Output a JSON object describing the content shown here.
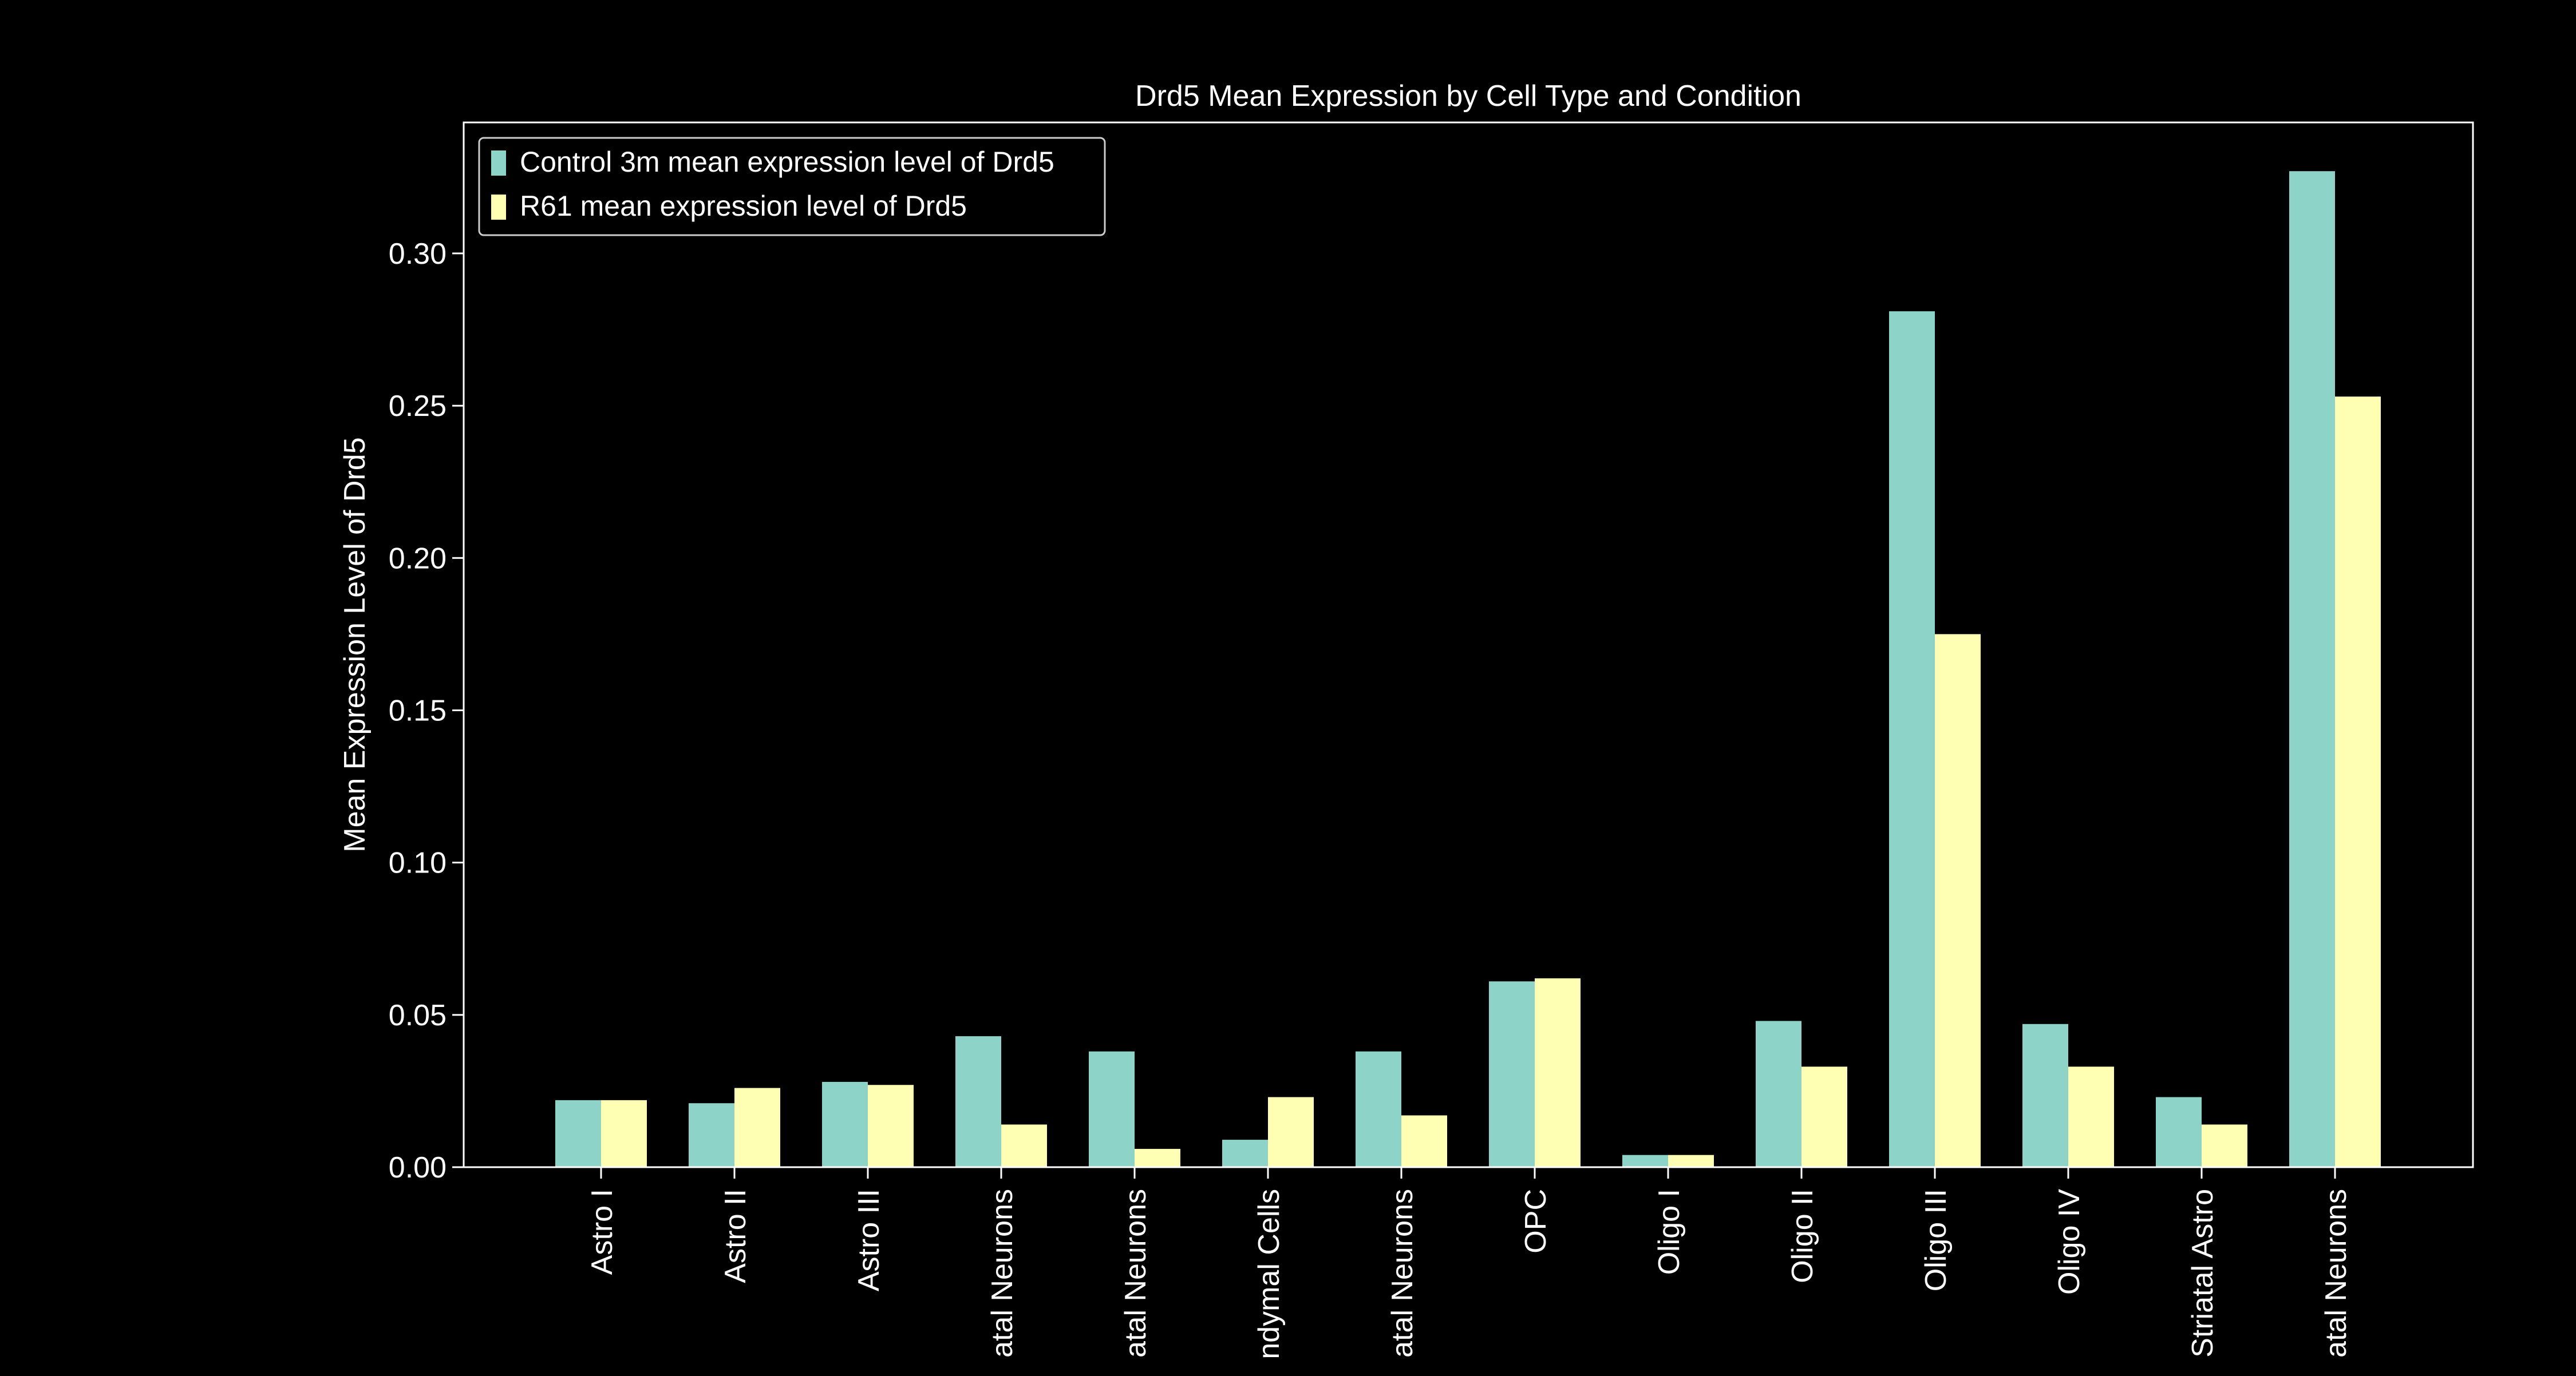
{
  "chart_data": {
    "type": "bar",
    "title": "Drd5 Mean Expression by Cell Type and Condition",
    "xlabel": "",
    "ylabel": "Mean Expression Level of Drd5",
    "ylim": [
      0,
      0.343
    ],
    "yticks": [
      0.0,
      0.05,
      0.1,
      0.15,
      0.2,
      0.25,
      0.3
    ],
    "ytick_labels": [
      "0.00",
      "0.05",
      "0.10",
      "0.15",
      "0.20",
      "0.25",
      "0.30"
    ],
    "grid": false,
    "legend_position": "top-left",
    "categories": [
      "Astro I",
      "Astro II",
      "Astro III",
      "atal Neurons",
      "atal Neurons",
      "ndymal Cells",
      "atal Neurons",
      "OPC",
      "Oligo I",
      "Oligo II",
      "Oligo III",
      "Oligo IV",
      "Striatal Astro",
      "atal Neurons"
    ],
    "series": [
      {
        "name": "Control 3m mean expression level of Drd5",
        "color": "#8dd3c7",
        "values": [
          0.022,
          0.021,
          0.028,
          0.043,
          0.038,
          0.009,
          0.038,
          0.061,
          0.004,
          0.048,
          0.281,
          0.047,
          0.023,
          0.327
        ]
      },
      {
        "name": "R61 mean expression level of Drd5",
        "color": "#ffffb3",
        "values": [
          0.022,
          0.026,
          0.027,
          0.014,
          0.006,
          0.023,
          0.017,
          0.062,
          0.004,
          0.033,
          0.175,
          0.033,
          0.014,
          0.253
        ]
      }
    ]
  }
}
